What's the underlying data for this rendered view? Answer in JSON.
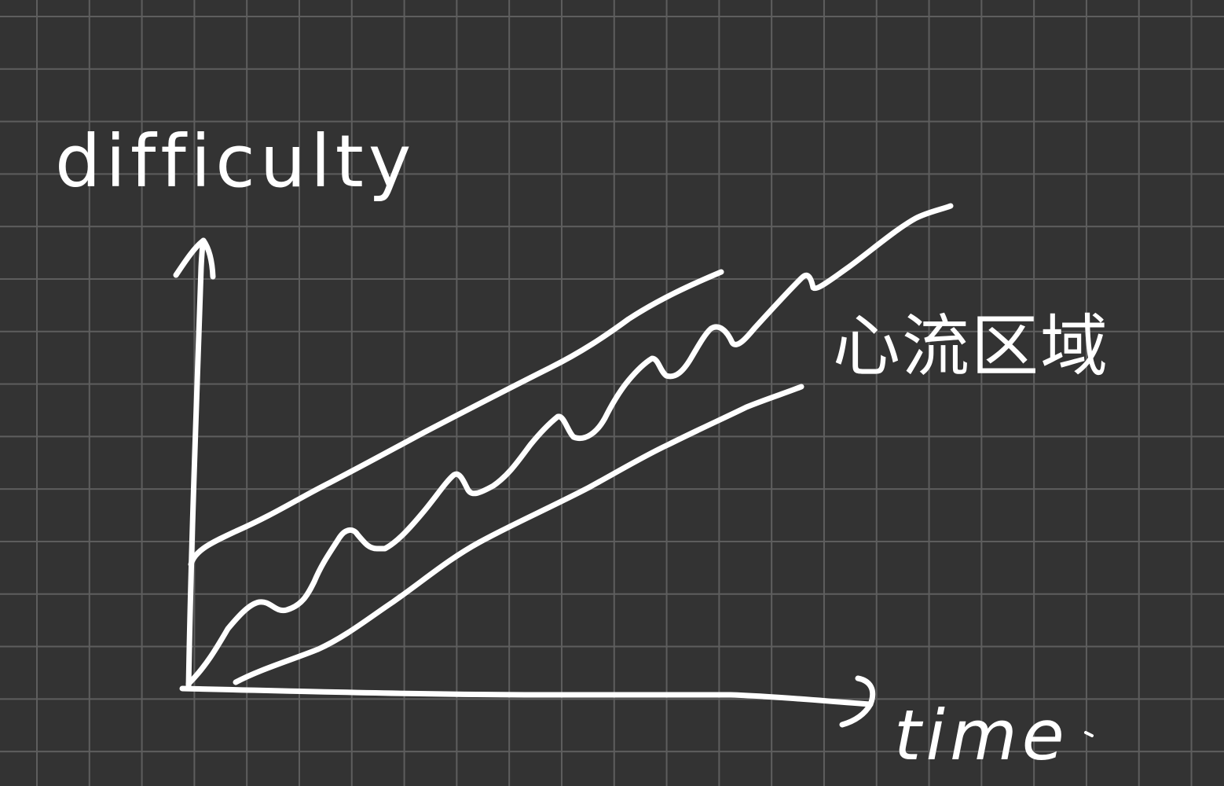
{
  "diagram": {
    "y_axis_label": "difficulty",
    "x_axis_label": "time",
    "zone_label": "心流区域"
  },
  "colors": {
    "background": "#333333",
    "grid": "#5e5e5e",
    "ink": "#ffffff"
  }
}
